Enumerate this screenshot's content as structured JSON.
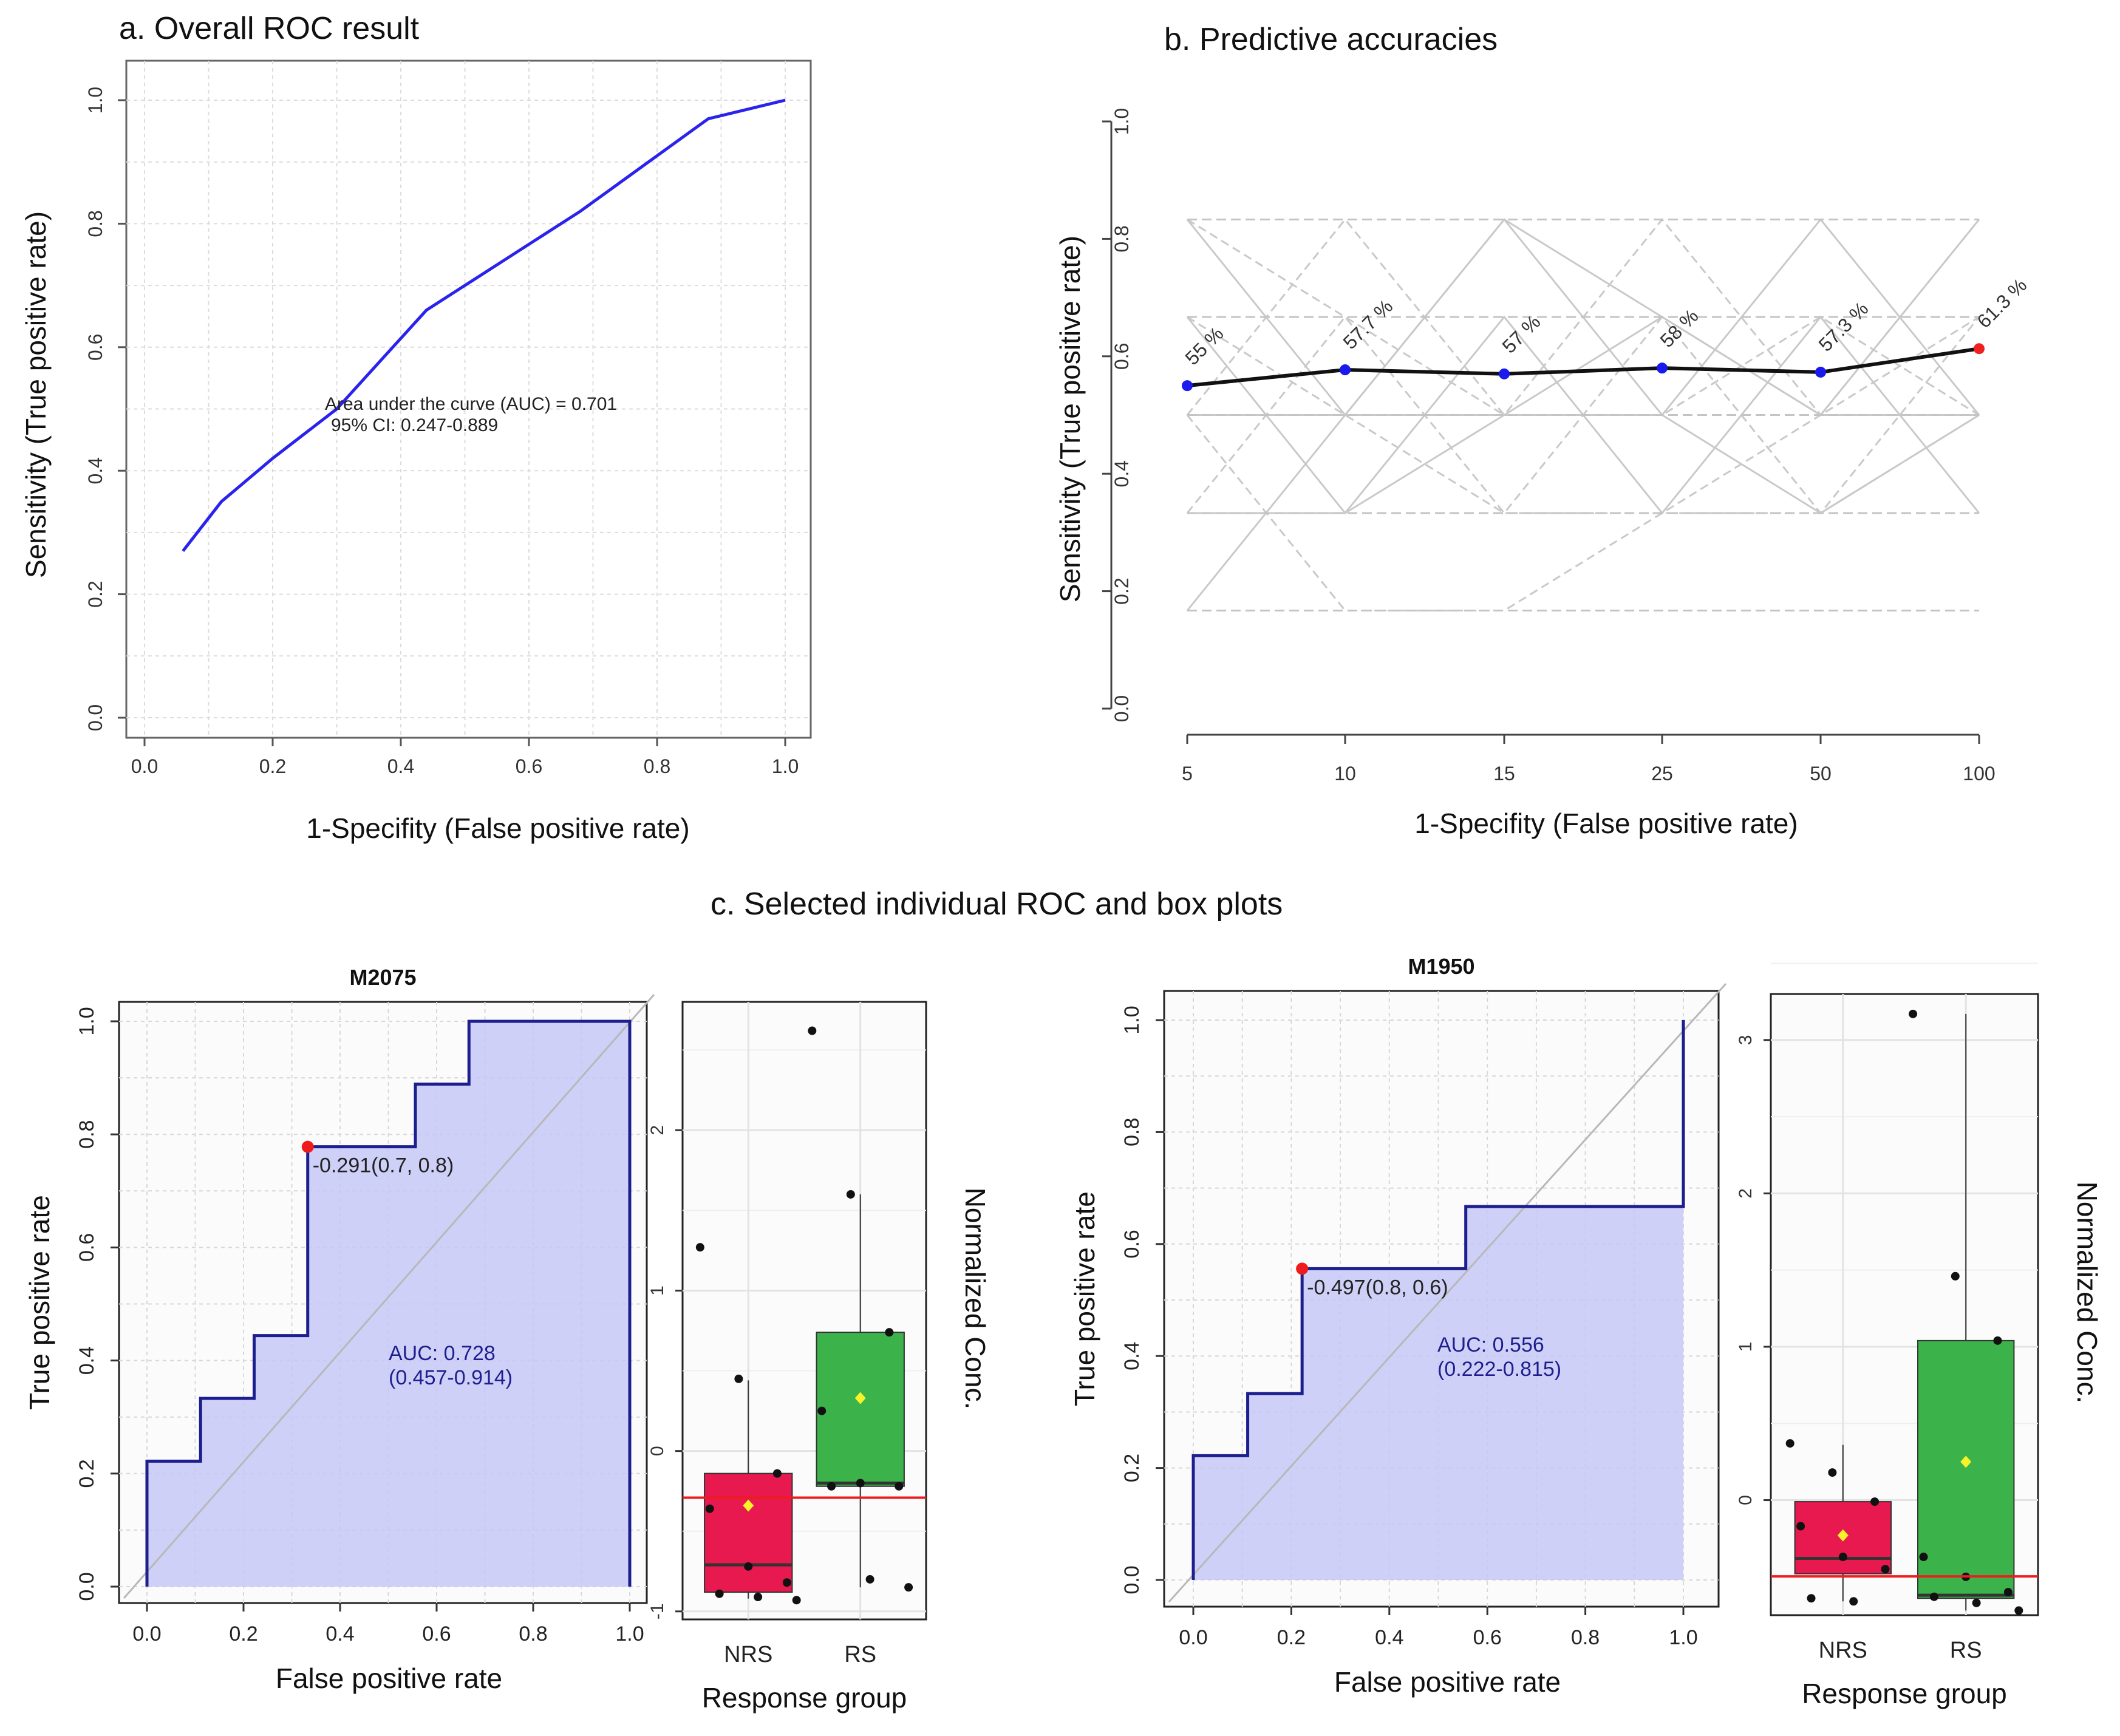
{
  "titles": {
    "panel_a": "a. Overall ROC result",
    "panel_b": "b. Predictive accuracies",
    "panel_c": "c. Selected individual ROC and box plots"
  },
  "chart_data": [
    {
      "id": "overall_roc",
      "type": "line",
      "title": "a. Overall ROC result",
      "xlabel": "1-Specifity (False positive rate)",
      "ylabel": "Sensitivity (True positive rate)",
      "xlim": [
        0,
        1
      ],
      "ylim": [
        0,
        1
      ],
      "xticks": [
        "0.0",
        "0.2",
        "0.4",
        "0.6",
        "0.8",
        "1.0"
      ],
      "yticks": [
        "0.0",
        "0.2",
        "0.4",
        "0.6",
        "0.8",
        "1.0"
      ],
      "grid": true,
      "line_color": "#2a23ee",
      "x": [
        0.06,
        0.12,
        0.2,
        0.3,
        0.44,
        0.56,
        0.68,
        0.8,
        0.88,
        1.0
      ],
      "y": [
        0.27,
        0.35,
        0.42,
        0.5,
        0.66,
        0.74,
        0.82,
        0.91,
        0.97,
        1.0
      ],
      "annotation": [
        "Area under the curve (AUC) = 0.701",
        "95% CI: 0.247-0.889"
      ]
    },
    {
      "id": "predictive_accuracy",
      "type": "line",
      "title": "b. Predictive accuracies",
      "xlabel": "1-Specifity (False positive rate)",
      "ylabel": "Sensitivity (True positive rate)",
      "categories": [
        "5",
        "10",
        "15",
        "25",
        "50",
        "100"
      ],
      "yticks": [
        "0.0",
        "0.2",
        "0.4",
        "0.6",
        "0.8",
        "1.0"
      ],
      "ylim": [
        0,
        1
      ],
      "values": [
        0.55,
        0.577,
        0.57,
        0.58,
        0.573,
        0.613
      ],
      "point_labels": [
        "55 %",
        "57.7 %",
        "57 %",
        "58 %",
        "57.3 %",
        "61.3 %"
      ],
      "highlight_index": 5,
      "point_color": "#1a1aee",
      "highlight_color": "#ee2020",
      "background_levels": [
        0.167,
        0.333,
        0.5,
        0.667,
        0.833
      ],
      "background_series": [
        [
          0.833,
          0.5,
          0.833,
          0.5,
          0.833,
          0.5
        ],
        [
          0.5,
          0.833,
          0.5,
          0.833,
          0.5,
          0.833
        ],
        [
          0.667,
          0.333,
          0.667,
          0.333,
          0.667,
          0.333
        ],
        [
          0.333,
          0.667,
          0.333,
          0.667,
          0.333,
          0.667
        ],
        [
          0.167,
          0.5,
          0.5,
          0.5,
          0.333,
          0.5
        ],
        [
          0.5,
          0.167,
          0.167,
          0.333,
          0.5,
          0.667
        ],
        [
          0.5,
          0.5,
          0.833,
          0.667,
          0.5,
          0.833
        ],
        [
          0.833,
          0.667,
          0.5,
          0.5,
          0.667,
          0.5
        ],
        [
          0.333,
          0.333,
          0.5,
          0.667,
          0.5,
          0.5
        ],
        [
          0.667,
          0.5,
          0.333,
          0.333,
          0.333,
          0.5
        ]
      ]
    },
    {
      "id": "roc_m2075",
      "type": "line",
      "title": "M2075",
      "xlabel": "False positive rate",
      "ylabel": "True positive rate",
      "xlim": [
        0,
        1
      ],
      "ylim": [
        0,
        1
      ],
      "xticks": [
        "0.0",
        "0.2",
        "0.4",
        "0.6",
        "0.8",
        "1.0"
      ],
      "yticks": [
        "0.0",
        "0.2",
        "0.4",
        "0.6",
        "0.8",
        "1.0"
      ],
      "x": [
        0,
        0,
        0.111,
        0.111,
        0.222,
        0.222,
        0.333,
        0.333,
        0.556,
        0.556,
        0.667,
        0.667,
        1.0,
        1.0
      ],
      "y": [
        0,
        0.222,
        0.222,
        0.333,
        0.333,
        0.444,
        0.444,
        0.778,
        0.778,
        0.889,
        0.889,
        1.0,
        1.0,
        0
      ],
      "cutoff_point": [
        0.333,
        0.778
      ],
      "cutoff_label": "-0.291(0.7, 0.8)",
      "auc_label": "AUC: 0.728",
      "ci_label": "(0.457-0.914)"
    },
    {
      "id": "box_m2075",
      "type": "box",
      "xlabel": "Response group",
      "ylabel": "Normalized Conc.",
      "categories": [
        "NRS",
        "RS"
      ],
      "yticks": [
        "-1",
        "0",
        "1",
        "2"
      ],
      "ylim": [
        -1.05,
        2.8
      ],
      "threshold": -0.291,
      "groups": [
        {
          "name": "NRS",
          "color": "#e8194f",
          "q1": -0.88,
          "median": -0.71,
          "q3": -0.14,
          "whisker_low": -0.92,
          "whisker_high": 0.44,
          "mean": -0.34,
          "points": [
            1.27,
            0.45,
            -0.14,
            -0.36,
            -0.72,
            -0.82,
            -0.89,
            -0.91,
            -0.93
          ]
        },
        {
          "name": "RS",
          "color": "#3bb24a",
          "q1": -0.22,
          "median": -0.2,
          "q3": 0.74,
          "whisker_low": -0.85,
          "whisker_high": 1.6,
          "mean": 0.33,
          "points": [
            2.62,
            1.6,
            0.74,
            0.25,
            -0.2,
            -0.22,
            -0.22,
            -0.8,
            -0.85
          ]
        }
      ]
    },
    {
      "id": "roc_m1950",
      "type": "line",
      "title": "M1950",
      "xlabel": "False positive rate",
      "ylabel": "True positive rate",
      "xlim": [
        0,
        1
      ],
      "ylim": [
        0,
        1
      ],
      "xticks": [
        "0.0",
        "0.2",
        "0.4",
        "0.6",
        "0.8",
        "1.0"
      ],
      "yticks": [
        "0.0",
        "0.2",
        "0.4",
        "0.6",
        "0.8",
        "1.0"
      ],
      "x": [
        0,
        0,
        0.111,
        0.111,
        0.222,
        0.222,
        0.556,
        0.556,
        1.0,
        1.0
      ],
      "y": [
        0,
        0.222,
        0.222,
        0.333,
        0.333,
        0.556,
        0.556,
        0.667,
        0.667,
        1.0
      ],
      "cutoff_point": [
        0.222,
        0.556
      ],
      "cutoff_label": "-0.497(0.8, 0.6)",
      "auc_label": "AUC: 0.556",
      "ci_label": "(0.222-0.815)"
    },
    {
      "id": "box_m1950",
      "type": "box",
      "xlabel": "Response group",
      "ylabel": "Normalized Conc.",
      "categories": [
        "NRS",
        "RS"
      ],
      "yticks": [
        "0",
        "1",
        "2",
        "3"
      ],
      "ylim": [
        -0.75,
        3.3
      ],
      "threshold": -0.497,
      "groups": [
        {
          "name": "NRS",
          "color": "#e8194f",
          "q1": -0.48,
          "median": -0.38,
          "q3": -0.01,
          "whisker_low": -0.66,
          "whisker_high": 0.36,
          "mean": -0.23,
          "points": [
            0.37,
            0.18,
            -0.01,
            -0.17,
            -0.37,
            -0.45,
            -0.64,
            -0.66
          ]
        },
        {
          "name": "RS",
          "color": "#3bb24a",
          "q1": -0.64,
          "median": -0.62,
          "q3": 1.04,
          "whisker_low": -0.72,
          "whisker_high": 3.17,
          "mean": 0.25,
          "points": [
            3.17,
            1.46,
            1.04,
            -0.37,
            -0.5,
            -0.6,
            -0.63,
            -0.67,
            -0.72
          ]
        }
      ]
    }
  ]
}
